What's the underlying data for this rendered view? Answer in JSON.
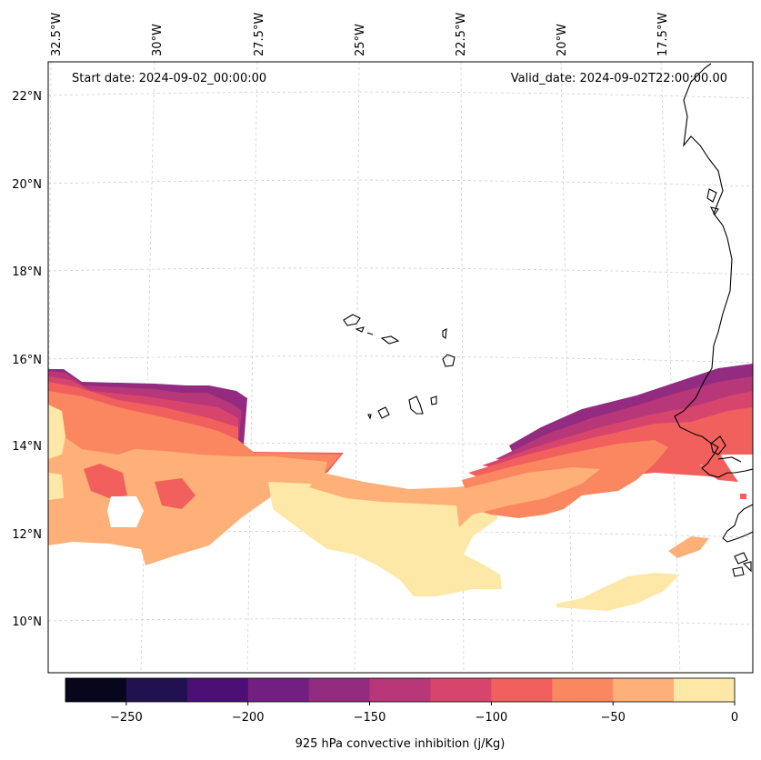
{
  "map": {
    "start_date_label": "Start date: 2024-09-02_00:00:00",
    "valid_date_label": "Valid_date: 2024-09-02T22:00:00.00",
    "lon_labels": [
      "32.5°W",
      "30°W",
      "27.5°W",
      "25°W",
      "22.5°W",
      "20°W",
      "17.5°W"
    ],
    "lat_labels": [
      "22°N",
      "20°N",
      "18°N",
      "16°N",
      "14°N",
      "12°N",
      "10°N"
    ]
  },
  "colorbar": {
    "label": "925 hPa convective inhibition (j/Kg)",
    "tick_labels": [
      "−250",
      "−200",
      "−150",
      "−100",
      "−50",
      "0"
    ],
    "colors": [
      "#07061c",
      "#221150",
      "#4b0f76",
      "#721f81",
      "#932b80",
      "#b73779",
      "#d8456c",
      "#f1605d",
      "#fb8761",
      "#feb078",
      "#fde8a8"
    ]
  },
  "legend_colors": {
    "vlow": "#932b80",
    "low": "#b73779",
    "mid": "#d8456c",
    "red": "#f1605d",
    "orange": "#fb8761",
    "peach": "#feb078",
    "pale": "#fde8a8"
  }
}
